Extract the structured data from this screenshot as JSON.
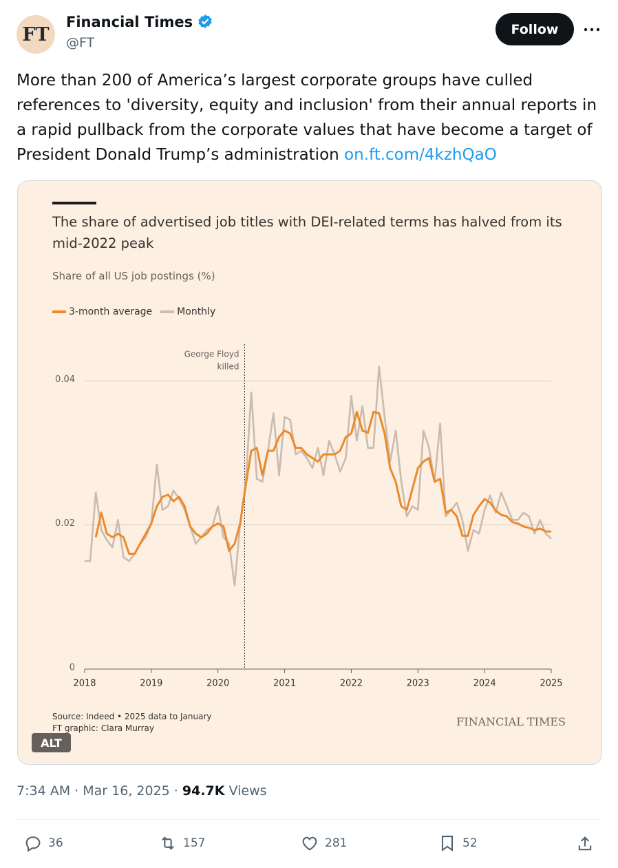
{
  "header": {
    "avatar": "FT",
    "name": "Financial Times",
    "handle": "@FT",
    "follow": "Follow"
  },
  "tweet": {
    "text": "More than 200 of America’s largest corporate groups have culled references to 'diversity, equity and inclusion' from their annual reports in a rapid pullback from the corporate values that have become a target of President Donald Trump’s administration",
    "link": "on.ft.com/4kzhQaO"
  },
  "chart_data": {
    "type": "line",
    "title": "The share of advertised job titles with DEI-related terms has halved from its mid-2022 peak",
    "subtitle": "Share of all US job postings (%)",
    "x": [
      2018,
      2018.083,
      2018.167,
      2018.25,
      2018.333,
      2018.417,
      2018.5,
      2018.583,
      2018.667,
      2018.75,
      2018.833,
      2018.917,
      2019,
      2019.083,
      2019.167,
      2019.25,
      2019.333,
      2019.417,
      2019.5,
      2019.583,
      2019.667,
      2019.75,
      2019.833,
      2019.917,
      2020,
      2020.083,
      2020.167,
      2020.25,
      2020.333,
      2020.417,
      2020.5,
      2020.583,
      2020.667,
      2020.75,
      2020.833,
      2020.917,
      2021,
      2021.083,
      2021.167,
      2021.25,
      2021.333,
      2021.417,
      2021.5,
      2021.583,
      2021.667,
      2021.75,
      2021.833,
      2021.917,
      2022,
      2022.083,
      2022.167,
      2022.25,
      2022.333,
      2022.417,
      2022.5,
      2022.583,
      2022.667,
      2022.75,
      2022.833,
      2022.917,
      2023,
      2023.083,
      2023.167,
      2023.25,
      2023.333,
      2023.417,
      2023.5,
      2023.583,
      2023.667,
      2023.75,
      2023.833,
      2023.917,
      2024,
      2024.083,
      2024.167,
      2024.25,
      2024.333,
      2024.417,
      2024.5,
      2024.583,
      2024.667,
      2024.75,
      2024.833,
      2024.917,
      2025
    ],
    "series": [
      {
        "name": "3-month average",
        "color": "#eb8a2d",
        "values": [
          null,
          null,
          0.0183,
          0.0217,
          0.0188,
          0.0183,
          0.0188,
          0.0183,
          0.016,
          0.016,
          0.0174,
          0.0188,
          0.0202,
          0.0226,
          0.0239,
          0.0242,
          0.0233,
          0.0239,
          0.0226,
          0.0198,
          0.0188,
          0.0183,
          0.0188,
          0.0198,
          0.0202,
          0.0198,
          0.0164,
          0.0174,
          0.0202,
          0.0255,
          0.0303,
          0.0307,
          0.0269,
          0.0303,
          0.0303,
          0.0322,
          0.0331,
          0.0327,
          0.0307,
          0.0307,
          0.0298,
          0.0293,
          0.0288,
          0.0298,
          0.0298,
          0.0298,
          0.0303,
          0.0322,
          0.0327,
          0.0357,
          0.0331,
          0.0328,
          0.0357,
          0.0355,
          0.0327,
          0.0279,
          0.026,
          0.0226,
          0.0221,
          0.025,
          0.0279,
          0.0288,
          0.0293,
          0.026,
          0.0264,
          0.0217,
          0.0221,
          0.0212,
          0.0185,
          0.0185,
          0.0214,
          0.0226,
          0.0236,
          0.0231,
          0.022,
          0.0214,
          0.0212,
          0.0204,
          0.0202,
          0.0198,
          0.0196,
          0.0193,
          0.0195,
          0.0191,
          0.0191
        ]
      },
      {
        "name": "Monthly",
        "color": "#c9bbae",
        "values": [
          0.015,
          0.015,
          0.0245,
          0.0193,
          0.0179,
          0.0169,
          0.0207,
          0.0155,
          0.015,
          0.016,
          0.0174,
          0.0183,
          0.0202,
          0.0284,
          0.0221,
          0.0226,
          0.0248,
          0.0236,
          0.0221,
          0.0198,
          0.0174,
          0.0183,
          0.0193,
          0.0198,
          0.0226,
          0.0183,
          0.0174,
          0.0116,
          0.0202,
          0.026,
          0.0384,
          0.0264,
          0.026,
          0.0303,
          0.0355,
          0.0269,
          0.035,
          0.0346,
          0.0298,
          0.0303,
          0.0293,
          0.0279,
          0.0307,
          0.0269,
          0.0317,
          0.0298,
          0.0274,
          0.0293,
          0.0379,
          0.0317,
          0.0365,
          0.0307,
          0.0307,
          0.042,
          0.035,
          0.0288,
          0.0331,
          0.026,
          0.0212,
          0.0226,
          0.0221,
          0.0331,
          0.0307,
          0.026,
          0.0341,
          0.0212,
          0.0221,
          0.0231,
          0.0207,
          0.0164,
          0.0193,
          0.0188,
          0.0221,
          0.0241,
          0.0217,
          0.0245,
          0.0226,
          0.0207,
          0.0207,
          0.0217,
          0.0212,
          0.0188,
          0.0207,
          0.0188,
          0.0181
        ]
      }
    ],
    "xlim": [
      2018,
      2025
    ],
    "xticks": [
      2018,
      2019,
      2020,
      2021,
      2022,
      2023,
      2024,
      2025
    ],
    "ylim": [
      0,
      0.045
    ],
    "yticks": [
      0,
      0.02,
      0.04
    ],
    "grid": true,
    "annotation": {
      "lines": [
        "George Floyd",
        "killed"
      ],
      "x": 2020.4
    },
    "source": "Source: Indeed • 2025 data to January",
    "credit": "FT graphic: Clara Murray",
    "brand": "FINANCIAL TIMES"
  },
  "image_badge": "ALT",
  "meta": {
    "time": "7:34 AM",
    "separator": "·",
    "date": "Mar 16, 2025",
    "views": "94.7K",
    "views_label": "Views"
  },
  "actions": {
    "replies": 36,
    "reposts": 157,
    "likes": 281,
    "bookmarks": 52
  }
}
